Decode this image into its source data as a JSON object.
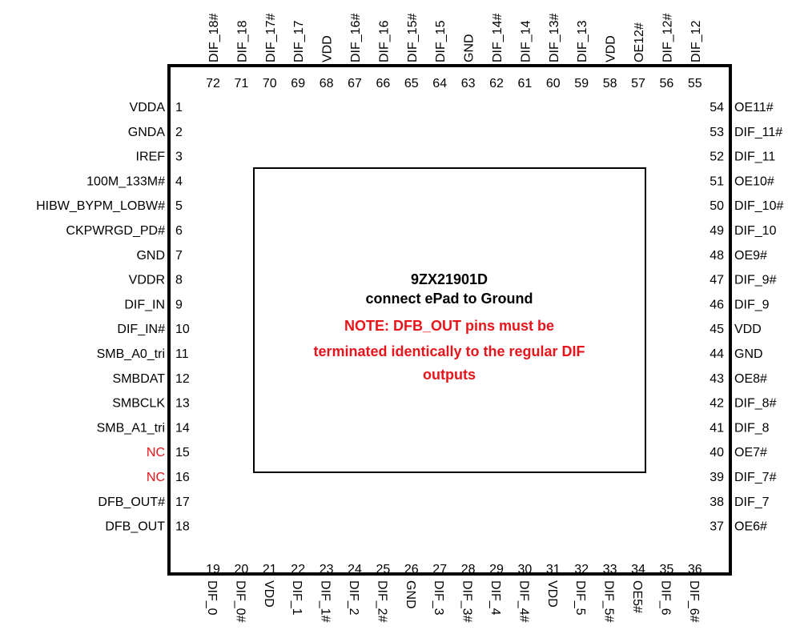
{
  "chip": {
    "part_number": "9ZX21901D",
    "line2": "connect ePad to Ground",
    "note_lines": [
      "NOTE: DFB_OUT pins must be",
      "terminated identically to the regular DIF",
      "outputs"
    ],
    "colors": {
      "outline": "#000000",
      "note": "#e8141b",
      "nc_label": "#e8141b"
    }
  },
  "left_pins": [
    {
      "num": "1",
      "name": "VDDA"
    },
    {
      "num": "2",
      "name": "GNDA"
    },
    {
      "num": "3",
      "name": "IREF"
    },
    {
      "num": "4",
      "name": "100M_133M#"
    },
    {
      "num": "5",
      "name": "HIBW_BYPM_LOBW#"
    },
    {
      "num": "6",
      "name": "CKPWRGD_PD#"
    },
    {
      "num": "7",
      "name": "GND"
    },
    {
      "num": "8",
      "name": "VDDR"
    },
    {
      "num": "9",
      "name": "DIF_IN"
    },
    {
      "num": "10",
      "name": "DIF_IN#"
    },
    {
      "num": "11",
      "name": "SMB_A0_tri"
    },
    {
      "num": "12",
      "name": "SMBDAT"
    },
    {
      "num": "13",
      "name": "SMBCLK"
    },
    {
      "num": "14",
      "name": "SMB_A1_tri"
    },
    {
      "num": "15",
      "name": "NC",
      "red": true
    },
    {
      "num": "16",
      "name": "NC",
      "red": true
    },
    {
      "num": "17",
      "name": "DFB_OUT#"
    },
    {
      "num": "18",
      "name": "DFB_OUT"
    }
  ],
  "right_pins": [
    {
      "num": "54",
      "name": "OE11#"
    },
    {
      "num": "53",
      "name": "DIF_11#"
    },
    {
      "num": "52",
      "name": "DIF_11"
    },
    {
      "num": "51",
      "name": "OE10#"
    },
    {
      "num": "50",
      "name": "DIF_10#"
    },
    {
      "num": "49",
      "name": "DIF_10"
    },
    {
      "num": "48",
      "name": "OE9#"
    },
    {
      "num": "47",
      "name": "DIF_9#"
    },
    {
      "num": "46",
      "name": "DIF_9"
    },
    {
      "num": "45",
      "name": "VDD"
    },
    {
      "num": "44",
      "name": "GND"
    },
    {
      "num": "43",
      "name": "OE8#"
    },
    {
      "num": "42",
      "name": "DIF_8#"
    },
    {
      "num": "41",
      "name": "DIF_8"
    },
    {
      "num": "40",
      "name": "OE7#"
    },
    {
      "num": "39",
      "name": "DIF_7#"
    },
    {
      "num": "38",
      "name": "DIF_7"
    },
    {
      "num": "37",
      "name": "OE6#"
    }
  ],
  "top_pins": [
    {
      "num": "72",
      "name": "DIF_18#"
    },
    {
      "num": "71",
      "name": "DIF_18"
    },
    {
      "num": "70",
      "name": "DIF_17#"
    },
    {
      "num": "69",
      "name": "DIF_17"
    },
    {
      "num": "68",
      "name": "VDD"
    },
    {
      "num": "67",
      "name": "DIF_16#"
    },
    {
      "num": "66",
      "name": "DIF_16"
    },
    {
      "num": "65",
      "name": "DIF_15#"
    },
    {
      "num": "64",
      "name": "DIF_15"
    },
    {
      "num": "63",
      "name": "GND"
    },
    {
      "num": "62",
      "name": "DIF_14#"
    },
    {
      "num": "61",
      "name": "DIF_14"
    },
    {
      "num": "60",
      "name": "DIF_13#"
    },
    {
      "num": "59",
      "name": "DIF_13"
    },
    {
      "num": "58",
      "name": "VDD"
    },
    {
      "num": "57",
      "name": "OE12#"
    },
    {
      "num": "56",
      "name": "DIF_12#"
    },
    {
      "num": "55",
      "name": "DIF_12"
    }
  ],
  "bottom_pins": [
    {
      "num": "19",
      "name": "DIF_0"
    },
    {
      "num": "20",
      "name": "DIF_0#"
    },
    {
      "num": "21",
      "name": "VDD"
    },
    {
      "num": "22",
      "name": "DIF_1"
    },
    {
      "num": "23",
      "name": "DIF_1#"
    },
    {
      "num": "24",
      "name": "DIF_2"
    },
    {
      "num": "25",
      "name": "DIF_2#"
    },
    {
      "num": "26",
      "name": "GND"
    },
    {
      "num": "27",
      "name": "DIF_3"
    },
    {
      "num": "28",
      "name": "DIF_3#"
    },
    {
      "num": "29",
      "name": "DIF_4"
    },
    {
      "num": "30",
      "name": "DIF_4#"
    },
    {
      "num": "31",
      "name": "VDD"
    },
    {
      "num": "32",
      "name": "DIF_5"
    },
    {
      "num": "33",
      "name": "DIF_5#"
    },
    {
      "num": "34",
      "name": "OE5#"
    },
    {
      "num": "35",
      "name": "DIF_6"
    },
    {
      "num": "36",
      "name": "DIF_6#"
    }
  ]
}
